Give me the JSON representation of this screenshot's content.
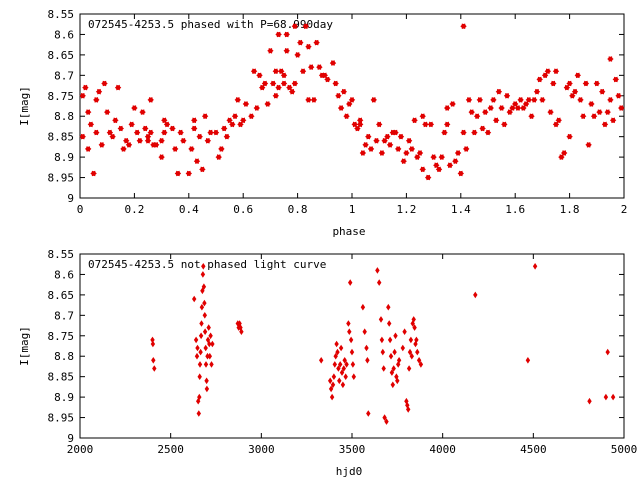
{
  "chart_data": [
    {
      "type": "scatter",
      "title": "072545-4253.5 phased with P=68.990day",
      "xlabel": "phase",
      "ylabel": "I[mag]",
      "xlim": [
        0,
        2
      ],
      "ylim": [
        8.55,
        9
      ],
      "y_inverted": true,
      "grid": false,
      "color": "#e00000",
      "xticks": [
        "0",
        "0.2",
        "0.4",
        "0.6",
        "0.8",
        "1",
        "1.2",
        "1.4",
        "1.6",
        "1.8",
        "2"
      ],
      "yticks": [
        "8.55",
        "8.6",
        "8.65",
        "8.7",
        "8.75",
        "8.8",
        "8.85",
        "8.9",
        "8.95",
        "9"
      ],
      "points": [
        [
          0.01,
          8.85
        ],
        [
          0.01,
          8.75
        ],
        [
          0.02,
          8.73
        ],
        [
          0.03,
          8.79
        ],
        [
          0.03,
          8.88
        ],
        [
          0.04,
          8.82
        ],
        [
          0.05,
          8.94
        ],
        [
          0.06,
          8.76
        ],
        [
          0.06,
          8.84
        ],
        [
          0.07,
          8.74
        ],
        [
          0.08,
          8.87
        ],
        [
          0.09,
          8.72
        ],
        [
          0.1,
          8.79
        ],
        [
          0.11,
          8.84
        ],
        [
          0.12,
          8.85
        ],
        [
          0.13,
          8.81
        ],
        [
          0.14,
          8.73
        ],
        [
          0.15,
          8.83
        ],
        [
          0.16,
          8.88
        ],
        [
          0.17,
          8.86
        ],
        [
          0.18,
          8.87
        ],
        [
          0.19,
          8.82
        ],
        [
          0.2,
          8.78
        ],
        [
          0.21,
          8.84
        ],
        [
          0.22,
          8.86
        ],
        [
          0.23,
          8.79
        ],
        [
          0.24,
          8.83
        ],
        [
          0.25,
          8.86
        ],
        [
          0.26,
          8.84
        ],
        [
          0.27,
          8.87
        ],
        [
          0.25,
          8.85
        ],
        [
          0.26,
          8.76
        ],
        [
          0.28,
          8.87
        ],
        [
          0.3,
          8.86
        ],
        [
          0.31,
          8.84
        ],
        [
          0.3,
          8.9
        ],
        [
          0.31,
          8.81
        ],
        [
          0.32,
          8.82
        ],
        [
          0.34,
          8.83
        ],
        [
          0.35,
          8.88
        ],
        [
          0.36,
          8.94
        ],
        [
          0.37,
          8.84
        ],
        [
          0.38,
          8.86
        ],
        [
          0.4,
          8.94
        ],
        [
          0.41,
          8.88
        ],
        [
          0.42,
          8.81
        ],
        [
          0.42,
          8.83
        ],
        [
          0.43,
          8.91
        ],
        [
          0.44,
          8.85
        ],
        [
          0.45,
          8.93
        ],
        [
          0.46,
          8.8
        ],
        [
          0.47,
          8.86
        ],
        [
          0.48,
          8.84
        ],
        [
          0.5,
          8.84
        ],
        [
          0.51,
          8.9
        ],
        [
          0.52,
          8.88
        ],
        [
          0.53,
          8.83
        ],
        [
          0.54,
          8.85
        ],
        [
          0.55,
          8.81
        ],
        [
          0.56,
          8.82
        ],
        [
          0.57,
          8.8
        ],
        [
          0.58,
          8.76
        ],
        [
          0.59,
          8.82
        ],
        [
          0.6,
          8.81
        ],
        [
          0.61,
          8.77
        ],
        [
          0.63,
          8.8
        ],
        [
          0.64,
          8.69
        ],
        [
          0.65,
          8.78
        ],
        [
          0.66,
          8.7
        ],
        [
          0.67,
          8.73
        ],
        [
          0.68,
          8.72
        ],
        [
          0.69,
          8.77
        ],
        [
          0.7,
          8.64
        ],
        [
          0.71,
          8.72
        ],
        [
          0.72,
          8.69
        ],
        [
          0.72,
          8.75
        ],
        [
          0.73,
          8.6
        ],
        [
          0.73,
          8.73
        ],
        [
          0.74,
          8.69
        ],
        [
          0.75,
          8.7
        ],
        [
          0.75,
          8.72
        ],
        [
          0.76,
          8.6
        ],
        [
          0.76,
          8.64
        ],
        [
          0.77,
          8.73
        ],
        [
          0.78,
          8.74
        ],
        [
          0.79,
          8.58
        ],
        [
          0.79,
          8.72
        ],
        [
          0.8,
          8.65
        ],
        [
          0.81,
          8.62
        ],
        [
          0.82,
          8.69
        ],
        [
          0.83,
          8.58
        ],
        [
          0.84,
          8.63
        ],
        [
          0.84,
          8.76
        ],
        [
          0.85,
          8.68
        ],
        [
          0.86,
          8.76
        ],
        [
          0.87,
          8.62
        ],
        [
          0.88,
          8.68
        ],
        [
          0.89,
          8.7
        ],
        [
          0.9,
          8.7
        ],
        [
          0.91,
          8.71
        ],
        [
          0.93,
          8.67
        ],
        [
          0.94,
          8.72
        ],
        [
          0.95,
          8.75
        ],
        [
          0.96,
          8.78
        ],
        [
          0.97,
          8.74
        ],
        [
          0.98,
          8.8
        ],
        [
          0.99,
          8.77
        ],
        [
          1.0,
          8.76
        ],
        [
          1.01,
          8.82
        ],
        [
          1.02,
          8.83
        ],
        [
          1.03,
          8.81
        ],
        [
          1.03,
          8.82
        ],
        [
          1.04,
          8.89
        ],
        [
          1.05,
          8.87
        ],
        [
          1.06,
          8.85
        ],
        [
          1.07,
          8.88
        ],
        [
          1.08,
          8.76
        ],
        [
          1.09,
          8.86
        ],
        [
          1.1,
          8.82
        ],
        [
          1.11,
          8.89
        ],
        [
          1.12,
          8.86
        ],
        [
          1.13,
          8.85
        ],
        [
          1.14,
          8.87
        ],
        [
          1.15,
          8.84
        ],
        [
          1.16,
          8.84
        ],
        [
          1.17,
          8.88
        ],
        [
          1.18,
          8.85
        ],
        [
          1.19,
          8.91
        ],
        [
          1.2,
          8.89
        ],
        [
          1.21,
          8.86
        ],
        [
          1.22,
          8.88
        ],
        [
          1.23,
          8.81
        ],
        [
          1.24,
          8.9
        ],
        [
          1.25,
          8.89
        ],
        [
          1.26,
          8.8
        ],
        [
          1.26,
          8.93
        ],
        [
          1.27,
          8.82
        ],
        [
          1.28,
          8.95
        ],
        [
          1.29,
          8.82
        ],
        [
          1.3,
          8.9
        ],
        [
          1.31,
          8.92
        ],
        [
          1.32,
          8.93
        ],
        [
          1.33,
          8.9
        ],
        [
          1.34,
          8.84
        ],
        [
          1.35,
          8.78
        ],
        [
          1.35,
          8.82
        ],
        [
          1.36,
          8.92
        ],
        [
          1.37,
          8.77
        ],
        [
          1.38,
          8.91
        ],
        [
          1.39,
          8.89
        ],
        [
          1.4,
          8.94
        ],
        [
          1.41,
          8.84
        ],
        [
          1.41,
          8.58
        ],
        [
          1.42,
          8.88
        ],
        [
          1.43,
          8.76
        ],
        [
          1.44,
          8.79
        ],
        [
          1.45,
          8.84
        ],
        [
          1.46,
          8.8
        ],
        [
          1.47,
          8.76
        ],
        [
          1.48,
          8.83
        ],
        [
          1.49,
          8.79
        ],
        [
          1.5,
          8.84
        ],
        [
          1.51,
          8.78
        ],
        [
          1.52,
          8.76
        ],
        [
          1.53,
          8.81
        ],
        [
          1.54,
          8.74
        ],
        [
          1.55,
          8.78
        ],
        [
          1.56,
          8.82
        ],
        [
          1.57,
          8.75
        ],
        [
          1.58,
          8.79
        ],
        [
          1.59,
          8.78
        ],
        [
          1.6,
          8.77
        ],
        [
          1.61,
          8.78
        ],
        [
          1.62,
          8.76
        ],
        [
          1.63,
          8.78
        ],
        [
          1.64,
          8.77
        ],
        [
          1.65,
          8.76
        ],
        [
          1.66,
          8.8
        ],
        [
          1.67,
          8.76
        ],
        [
          1.68,
          8.74
        ],
        [
          1.69,
          8.71
        ],
        [
          1.7,
          8.76
        ],
        [
          1.71,
          8.7
        ],
        [
          1.72,
          8.69
        ],
        [
          1.73,
          8.79
        ],
        [
          1.74,
          8.72
        ],
        [
          1.75,
          8.82
        ],
        [
          1.75,
          8.69
        ],
        [
          1.76,
          8.81
        ],
        [
          1.77,
          8.9
        ],
        [
          1.78,
          8.89
        ],
        [
          1.79,
          8.73
        ],
        [
          1.8,
          8.72
        ],
        [
          1.8,
          8.85
        ],
        [
          1.81,
          8.75
        ],
        [
          1.82,
          8.74
        ],
        [
          1.83,
          8.7
        ],
        [
          1.84,
          8.76
        ],
        [
          1.85,
          8.8
        ],
        [
          1.86,
          8.72
        ],
        [
          1.87,
          8.87
        ],
        [
          1.88,
          8.77
        ],
        [
          1.89,
          8.8
        ],
        [
          1.9,
          8.72
        ],
        [
          1.91,
          8.79
        ],
        [
          1.92,
          8.74
        ],
        [
          1.93,
          8.82
        ],
        [
          1.94,
          8.79
        ],
        [
          1.95,
          8.76
        ],
        [
          1.95,
          8.66
        ],
        [
          1.96,
          8.81
        ],
        [
          1.97,
          8.71
        ],
        [
          1.98,
          8.75
        ],
        [
          1.99,
          8.78
        ]
      ]
    },
    {
      "type": "scatter",
      "title": "072545-4253.5 not phased light curve",
      "xlabel": "hjd0",
      "ylabel": "I[mag]",
      "xlim": [
        2000,
        5000
      ],
      "ylim": [
        8.55,
        9
      ],
      "y_inverted": true,
      "grid": false,
      "color": "#e00000",
      "xticks": [
        "2000",
        "2500",
        "3000",
        "3500",
        "4000",
        "4500",
        "5000"
      ],
      "yticks": [
        "8.55",
        "8.6",
        "8.65",
        "8.7",
        "8.75",
        "8.8",
        "8.85",
        "8.9",
        "8.95",
        "9"
      ],
      "points": [
        [
          2400,
          8.76
        ],
        [
          2402,
          8.77
        ],
        [
          2404,
          8.81
        ],
        [
          2410,
          8.83
        ],
        [
          2630,
          8.66
        ],
        [
          2640,
          8.76
        ],
        [
          2645,
          8.8
        ],
        [
          2648,
          8.78
        ],
        [
          2652,
          8.91
        ],
        [
          2655,
          8.94
        ],
        [
          2658,
          8.9
        ],
        [
          2660,
          8.85
        ],
        [
          2662,
          8.82
        ],
        [
          2665,
          8.79
        ],
        [
          2668,
          8.75
        ],
        [
          2670,
          8.72
        ],
        [
          2672,
          8.68
        ],
        [
          2675,
          8.64
        ],
        [
          2678,
          8.6
        ],
        [
          2680,
          8.58
        ],
        [
          2683,
          8.63
        ],
        [
          2686,
          8.67
        ],
        [
          2688,
          8.7
        ],
        [
          2690,
          8.74
        ],
        [
          2693,
          8.78
        ],
        [
          2695,
          8.82
        ],
        [
          2698,
          8.86
        ],
        [
          2700,
          8.88
        ],
        [
          2703,
          8.8
        ],
        [
          2706,
          8.76
        ],
        [
          2710,
          8.73
        ],
        [
          2713,
          8.77
        ],
        [
          2716,
          8.8
        ],
        [
          2720,
          8.75
        ],
        [
          2725,
          8.82
        ],
        [
          2730,
          8.77
        ],
        [
          2870,
          8.72
        ],
        [
          2875,
          8.73
        ],
        [
          2880,
          8.72
        ],
        [
          2885,
          8.73
        ],
        [
          2890,
          8.74
        ],
        [
          3330,
          8.81
        ],
        [
          3380,
          8.86
        ],
        [
          3385,
          8.88
        ],
        [
          3390,
          8.9
        ],
        [
          3395,
          8.87
        ],
        [
          3400,
          8.85
        ],
        [
          3405,
          8.82
        ],
        [
          3410,
          8.8
        ],
        [
          3415,
          8.77
        ],
        [
          3420,
          8.79
        ],
        [
          3425,
          8.83
        ],
        [
          3430,
          8.86
        ],
        [
          3435,
          8.82
        ],
        [
          3440,
          8.78
        ],
        [
          3445,
          8.84
        ],
        [
          3450,
          8.87
        ],
        [
          3455,
          8.83
        ],
        [
          3460,
          8.81
        ],
        [
          3465,
          8.85
        ],
        [
          3470,
          8.82
        ],
        [
          3480,
          8.72
        ],
        [
          3485,
          8.74
        ],
        [
          3490,
          8.62
        ],
        [
          3495,
          8.76
        ],
        [
          3500,
          8.79
        ],
        [
          3505,
          8.82
        ],
        [
          3510,
          8.85
        ],
        [
          3560,
          8.68
        ],
        [
          3570,
          8.74
        ],
        [
          3580,
          8.78
        ],
        [
          3585,
          8.81
        ],
        [
          3590,
          8.94
        ],
        [
          3640,
          8.59
        ],
        [
          3650,
          8.62
        ],
        [
          3660,
          8.71
        ],
        [
          3665,
          8.76
        ],
        [
          3670,
          8.79
        ],
        [
          3675,
          8.83
        ],
        [
          3680,
          8.95
        ],
        [
          3690,
          8.96
        ],
        [
          3700,
          8.68
        ],
        [
          3705,
          8.72
        ],
        [
          3710,
          8.76
        ],
        [
          3715,
          8.8
        ],
        [
          3720,
          8.84
        ],
        [
          3725,
          8.87
        ],
        [
          3730,
          8.83
        ],
        [
          3735,
          8.79
        ],
        [
          3740,
          8.75
        ],
        [
          3745,
          8.85
        ],
        [
          3750,
          8.86
        ],
        [
          3755,
          8.82
        ],
        [
          3760,
          8.81
        ],
        [
          3780,
          8.78
        ],
        [
          3790,
          8.74
        ],
        [
          3800,
          8.91
        ],
        [
          3805,
          8.92
        ],
        [
          3810,
          8.93
        ],
        [
          3815,
          8.83
        ],
        [
          3820,
          8.79
        ],
        [
          3825,
          8.76
        ],
        [
          3830,
          8.8
        ],
        [
          3835,
          8.72
        ],
        [
          3840,
          8.71
        ],
        [
          3845,
          8.73
        ],
        [
          3850,
          8.77
        ],
        [
          3855,
          8.76
        ],
        [
          3860,
          8.79
        ],
        [
          3870,
          8.81
        ],
        [
          3880,
          8.82
        ],
        [
          4180,
          8.65
        ],
        [
          4470,
          8.81
        ],
        [
          4510,
          8.58
        ],
        [
          4810,
          8.91
        ],
        [
          4900,
          8.9
        ],
        [
          4910,
          8.79
        ],
        [
          4940,
          8.9
        ]
      ]
    }
  ]
}
